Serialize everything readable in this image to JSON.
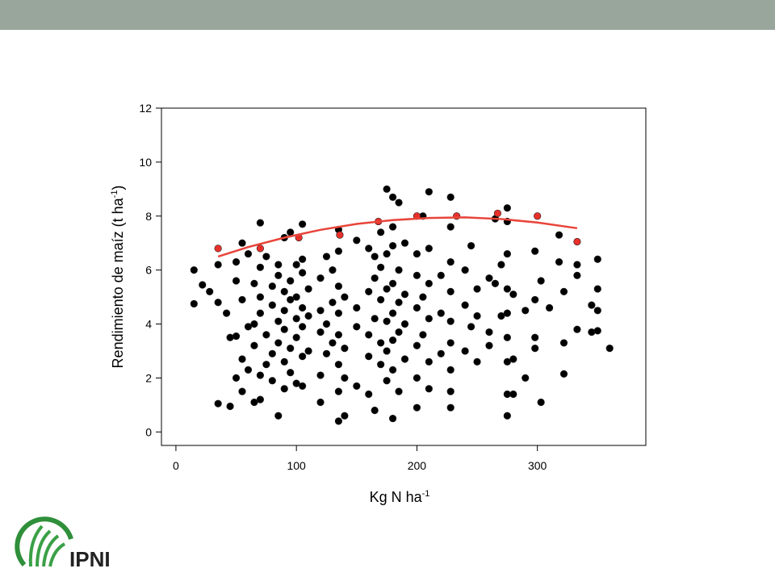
{
  "chart_data": {
    "type": "scatter",
    "x_label": {
      "text": "Kg N ha",
      "sup": "-1"
    },
    "y_label": {
      "text": "Rendimiento de maíz (t ha",
      "sup": "-1",
      "end": ")"
    },
    "xlim": [
      -12,
      390
    ],
    "ylim": [
      -0.5,
      12
    ],
    "xticks": [
      0,
      100,
      200,
      300
    ],
    "yticks": [
      0,
      2,
      4,
      6,
      8,
      10,
      12
    ],
    "series": [
      {
        "type": "scatter",
        "color": "#000000",
        "x": [
          15,
          15,
          22,
          28,
          35,
          35,
          35,
          42,
          45,
          45,
          50,
          50,
          50,
          50,
          55,
          55,
          55,
          55,
          60,
          60,
          60,
          65,
          65,
          65,
          65,
          70,
          70,
          70,
          70,
          70,
          70,
          75,
          75,
          75,
          80,
          80,
          80,
          80,
          85,
          85,
          85,
          85,
          85,
          90,
          90,
          90,
          90,
          90,
          90,
          95,
          95,
          95,
          95,
          95,
          100,
          100,
          100,
          100,
          100,
          105,
          105,
          105,
          105,
          105,
          105,
          105,
          110,
          110,
          110,
          120,
          120,
          120,
          120,
          120,
          125,
          125,
          125,
          130,
          130,
          130,
          135,
          135,
          135,
          135,
          135,
          135,
          135,
          135,
          140,
          140,
          140,
          140,
          150,
          150,
          150,
          150,
          160,
          160,
          160,
          160,
          160,
          165,
          165,
          165,
          165,
          170,
          170,
          170,
          170,
          170,
          175,
          175,
          175,
          175,
          175,
          175,
          180,
          180,
          180,
          180,
          180,
          180,
          180,
          180,
          185,
          185,
          185,
          185,
          185,
          190,
          190,
          190,
          190,
          200,
          200,
          200,
          200,
          200,
          200,
          205,
          205,
          205,
          210,
          210,
          210,
          210,
          210,
          210,
          220,
          220,
          220,
          228,
          228,
          228,
          228,
          228,
          228,
          228,
          228,
          228,
          240,
          240,
          240,
          245,
          245,
          250,
          250,
          250,
          260,
          260,
          260,
          265,
          265,
          270,
          270,
          275,
          275,
          275,
          275,
          275,
          275,
          275,
          275,
          275,
          280,
          280,
          280,
          290,
          290,
          298,
          298,
          298,
          298,
          303,
          303,
          310,
          318,
          318,
          322,
          322,
          322,
          333,
          333,
          333,
          345,
          345,
          350,
          350,
          350,
          350,
          360
        ],
        "values": [
          6.0,
          4.75,
          5.45,
          5.2,
          1.05,
          4.8,
          6.2,
          4.4,
          3.5,
          0.95,
          2.0,
          3.55,
          5.6,
          6.3,
          7.0,
          2.7,
          1.5,
          4.9,
          3.9,
          6.6,
          2.3,
          1.1,
          3.2,
          5.5,
          4.0,
          7.75,
          1.2,
          2.1,
          4.4,
          5.0,
          6.1,
          3.6,
          2.5,
          6.5,
          5.4,
          2.9,
          1.9,
          4.7,
          0.6,
          3.3,
          5.8,
          6.2,
          4.1,
          7.2,
          1.6,
          2.6,
          3.8,
          4.5,
          5.2,
          7.4,
          2.2,
          3.1,
          4.9,
          5.6,
          6.2,
          1.8,
          3.5,
          4.2,
          5.0,
          7.7,
          1.7,
          2.8,
          3.9,
          4.6,
          5.9,
          6.4,
          4.3,
          3.0,
          5.3,
          1.1,
          2.1,
          3.7,
          4.5,
          5.7,
          6.5,
          2.9,
          4.0,
          4.8,
          3.3,
          6.0,
          0.4,
          1.5,
          2.5,
          3.6,
          4.4,
          5.4,
          6.7,
          7.5,
          0.6,
          2.0,
          3.1,
          5.0,
          1.7,
          3.9,
          4.6,
          7.1,
          1.4,
          2.8,
          3.6,
          5.2,
          6.8,
          0.8,
          4.2,
          5.7,
          6.5,
          2.5,
          3.3,
          4.9,
          6.1,
          7.4,
          9.0,
          1.9,
          3.0,
          4.1,
          5.3,
          6.6,
          8.7,
          0.5,
          2.3,
          3.4,
          4.4,
          5.5,
          6.9,
          7.6,
          8.5,
          1.5,
          3.7,
          4.8,
          6.0,
          2.7,
          4.0,
          5.1,
          7.0,
          0.9,
          2.0,
          3.2,
          4.6,
          5.8,
          6.6,
          8.0,
          3.6,
          5.0,
          8.9,
          1.6,
          2.6,
          4.2,
          5.5,
          6.8,
          2.9,
          4.4,
          5.8,
          8.7,
          0.9,
          1.5,
          2.3,
          3.3,
          4.1,
          5.2,
          6.3,
          7.6,
          3.0,
          4.7,
          6.0,
          6.9,
          3.9,
          2.6,
          5.3,
          4.3,
          3.7,
          5.7,
          3.2,
          7.9,
          5.5,
          4.3,
          6.2,
          8.3,
          0.6,
          1.4,
          2.6,
          3.5,
          4.4,
          5.3,
          6.6,
          7.8,
          1.4,
          2.7,
          5.1,
          2.0,
          4.5,
          6.7,
          3.1,
          3.5,
          4.9,
          1.1,
          5.6,
          4.6,
          7.3,
          6.3,
          2.15,
          3.3,
          5.2,
          6.2,
          3.8,
          5.8,
          4.7,
          3.7,
          6.4,
          4.5,
          3.75,
          5.3,
          3.1
        ]
      },
      {
        "type": "scatter",
        "color": "#e8302a",
        "x": [
          35,
          70,
          102,
          136,
          168,
          200,
          233,
          267,
          300,
          333
        ],
        "values": [
          6.8,
          6.8,
          7.2,
          7.3,
          7.8,
          8.0,
          8.0,
          8.1,
          8.0,
          7.05
        ]
      },
      {
        "type": "line",
        "color": "#e8443a",
        "x": [
          35,
          60,
          90,
          120,
          150,
          180,
          210,
          240,
          270,
          300,
          333
        ],
        "values": [
          6.5,
          6.85,
          7.2,
          7.49,
          7.71,
          7.85,
          7.93,
          7.95,
          7.89,
          7.76,
          7.55
        ]
      }
    ]
  },
  "logo": {
    "text": "IPNI"
  }
}
